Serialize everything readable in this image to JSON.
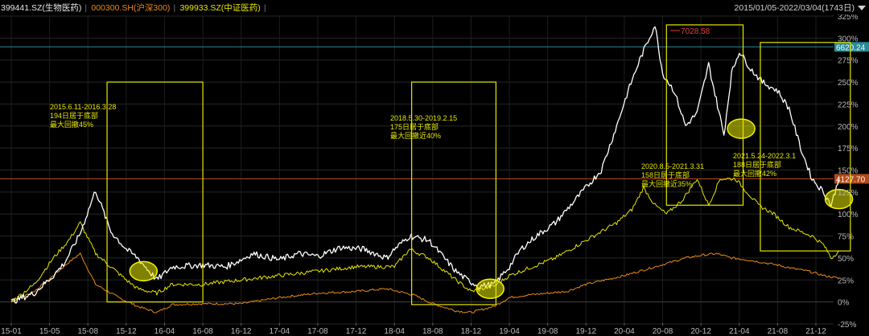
{
  "header": {
    "items": [
      {
        "text": "399441.SZ(生物医药)",
        "color": "#e6e6e6"
      },
      {
        "text": "000300.SH(沪深300)",
        "color": "#e88a1a"
      },
      {
        "text": "399933.SZ(中证医药)",
        "color": "#e6e600"
      }
    ],
    "range": "2015/01/05-2022/03/04(1743日)",
    "dropdown_icon": "triangle-down-icon"
  },
  "chart_data": {
    "type": "line",
    "title": "",
    "xlabel": "",
    "ylabel": "",
    "ylim": [
      -25,
      325
    ],
    "y_ticks": [
      "325%",
      "300%",
      "275%",
      "250%",
      "225%",
      "200%",
      "175%",
      "150%",
      "125%",
      "100%",
      "75%",
      "50%",
      "25%",
      "0%",
      "-25%"
    ],
    "x_ticks": [
      "15-01",
      "15-05",
      "15-08",
      "15-12",
      "16-04",
      "16-08",
      "16-12",
      "17-04",
      "17-08",
      "17-12",
      "18-04",
      "18-08",
      "18-12",
      "19-04",
      "19-08",
      "19-12",
      "20-04",
      "20-08",
      "20-12",
      "21-04",
      "21-08",
      "21-12"
    ],
    "grid": true,
    "series": [
      {
        "name": "399441.SZ(生物医药)",
        "color": "#ffffff",
        "x": [
          0,
          0.6,
          1.1,
          1.4,
          1.8,
          2.2,
          2.6,
          3.0,
          3.3,
          3.8,
          4.2,
          5.0,
          5.6,
          6.0,
          6.3,
          7.0,
          7.5,
          8.0,
          8.6,
          9.2,
          9.8,
          10.0,
          10.4,
          10.9,
          11.6,
          11.9,
          12.2,
          12.6,
          13.0,
          13.3,
          13.7,
          14.2,
          14.6,
          15.0,
          15.4,
          15.8,
          16.1,
          16.4,
          16.8,
          17.0,
          17.3,
          17.6,
          17.9,
          18.2,
          18.4,
          18.6,
          18.8,
          19.0,
          19.3,
          19.6,
          20.0,
          20.3,
          20.6,
          20.9,
          21.2,
          21.4,
          21.5,
          21.6
        ],
        "y": [
          0,
          10,
          30,
          45,
          78,
          127,
          80,
          60,
          50,
          25,
          40,
          42,
          40,
          48,
          55,
          48,
          55,
          52,
          62,
          60,
          50,
          60,
          75,
          70,
          35,
          25,
          18,
          20,
          40,
          60,
          75,
          90,
          110,
          130,
          150,
          200,
          240,
          275,
          315,
          260,
          240,
          200,
          215,
          270,
          230,
          190,
          260,
          285,
          265,
          250,
          240,
          220,
          175,
          140,
          125,
          110,
          125,
          140
        ]
      },
      {
        "name": "000300.SH(沪深300)",
        "color": "#e88a1a",
        "x": [
          0,
          0.6,
          1.1,
          1.5,
          1.8,
          2.2,
          2.8,
          3.3,
          3.8,
          4.2,
          5.0,
          6.0,
          7.0,
          8.0,
          9.0,
          9.8,
          10.5,
          11.0,
          11.6,
          12.0,
          12.6,
          13.0,
          13.5,
          14.0,
          14.5,
          15.0,
          15.5,
          16.0,
          16.4,
          16.8,
          17.2,
          17.6,
          18.0,
          18.4,
          18.8,
          19.2,
          19.6,
          20.0,
          20.4,
          20.8,
          21.2,
          21.6
        ],
        "y": [
          0,
          12,
          30,
          45,
          55,
          20,
          5,
          -5,
          -12,
          -3,
          -2,
          -2,
          5,
          10,
          12,
          15,
          8,
          -2,
          -10,
          -12,
          -5,
          5,
          8,
          10,
          12,
          20,
          25,
          30,
          35,
          40,
          45,
          50,
          53,
          55,
          50,
          48,
          45,
          42,
          38,
          35,
          30,
          27
        ]
      },
      {
        "name": "399933.SZ(中证医药)",
        "color": "#e6e600",
        "x": [
          0,
          0.6,
          1.1,
          1.5,
          1.8,
          2.2,
          2.6,
          3.0,
          3.3,
          3.8,
          4.2,
          5.0,
          6.0,
          7.0,
          8.0,
          9.0,
          10.0,
          10.4,
          10.9,
          11.6,
          12.0,
          12.6,
          13.0,
          13.6,
          14.2,
          14.6,
          15.0,
          15.4,
          15.8,
          16.2,
          16.5,
          16.8,
          17.1,
          17.5,
          17.9,
          18.2,
          18.5,
          18.9,
          19.2,
          19.5,
          19.9,
          20.3,
          20.6,
          20.9,
          21.2,
          21.4,
          21.6
        ],
        "y": [
          0,
          20,
          50,
          70,
          90,
          55,
          40,
          25,
          15,
          10,
          20,
          20,
          25,
          30,
          35,
          40,
          40,
          60,
          50,
          25,
          12,
          18,
          30,
          40,
          50,
          60,
          70,
          80,
          90,
          105,
          130,
          110,
          100,
          115,
          140,
          110,
          140,
          140,
          125,
          110,
          100,
          85,
          80,
          75,
          65,
          50,
          58
        ]
      }
    ],
    "reference_lines": [
      {
        "label": "6620.24",
        "value": 290,
        "line_color": "#2a8a96",
        "label_bg": "#2a8a96"
      },
      {
        "label": "4127.70",
        "value": 140,
        "line_color": "#b04a1a",
        "label_bg": "#b04a1a"
      }
    ],
    "peak_label": {
      "text": "7028.58",
      "x": 17.2,
      "y": 314
    },
    "annotations": [
      {
        "lines": [
          "2015.6.11-2016.3.28",
          "194日居于底部",
          "最大回撤45%"
        ],
        "box": {
          "x0": 2.5,
          "x1": 5.0,
          "y0": 0,
          "y1": 250
        }
      },
      {
        "lines": [
          "2018.5.30-2019.2.15",
          "175日居于底部",
          "最大回撤近40%"
        ],
        "box": {
          "x0": 10.45,
          "x1": 12.65,
          "y0": -3,
          "y1": 250
        }
      },
      {
        "lines": [
          "2020.8.5-2021.3.31",
          "158日居于底部",
          "最大回撤近35%"
        ],
        "box": {
          "x0": 17.1,
          "x1": 19.1,
          "y0": 110,
          "y1": 315
        }
      },
      {
        "lines": [
          "2021.5.24-2022.3.1",
          "188日居于底部",
          "最大回撤42%"
        ],
        "box": {
          "x0": 19.55,
          "x1": 21.9,
          "y0": 58,
          "y1": 295
        }
      }
    ],
    "highlights": [
      {
        "x": 3.45,
        "y": 35
      },
      {
        "x": 12.5,
        "y": 15
      },
      {
        "x": 19.05,
        "y": 197
      },
      {
        "x": 21.6,
        "y": 117
      }
    ]
  }
}
